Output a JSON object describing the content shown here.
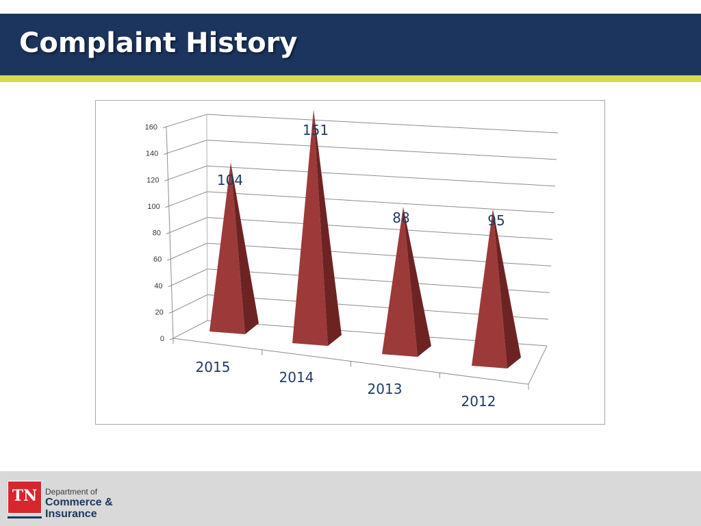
{
  "header": {
    "title": "Complaint History"
  },
  "colors": {
    "header_bg": "#1c355e",
    "accent": "#d1da54",
    "bar_front": "#9c3a3a",
    "bar_side": "#6e2323",
    "value_label": "#1f3a63"
  },
  "footer": {
    "logo_text": "TN",
    "org_line1": "Department of",
    "org_line2": "Commerce &",
    "org_line3": "Insurance"
  },
  "chart_data": {
    "type": "bar",
    "shape": "3d-pyramid",
    "categories": [
      "2015",
      "2014",
      "2013",
      "2012"
    ],
    "values": [
      104,
      151,
      88,
      95
    ],
    "data_labels": [
      "104",
      "151",
      "88",
      "95"
    ],
    "ylim": [
      0,
      160
    ],
    "yticks": [
      0,
      20,
      40,
      60,
      80,
      100,
      120,
      140,
      160
    ],
    "grid": true,
    "legend": "none"
  }
}
